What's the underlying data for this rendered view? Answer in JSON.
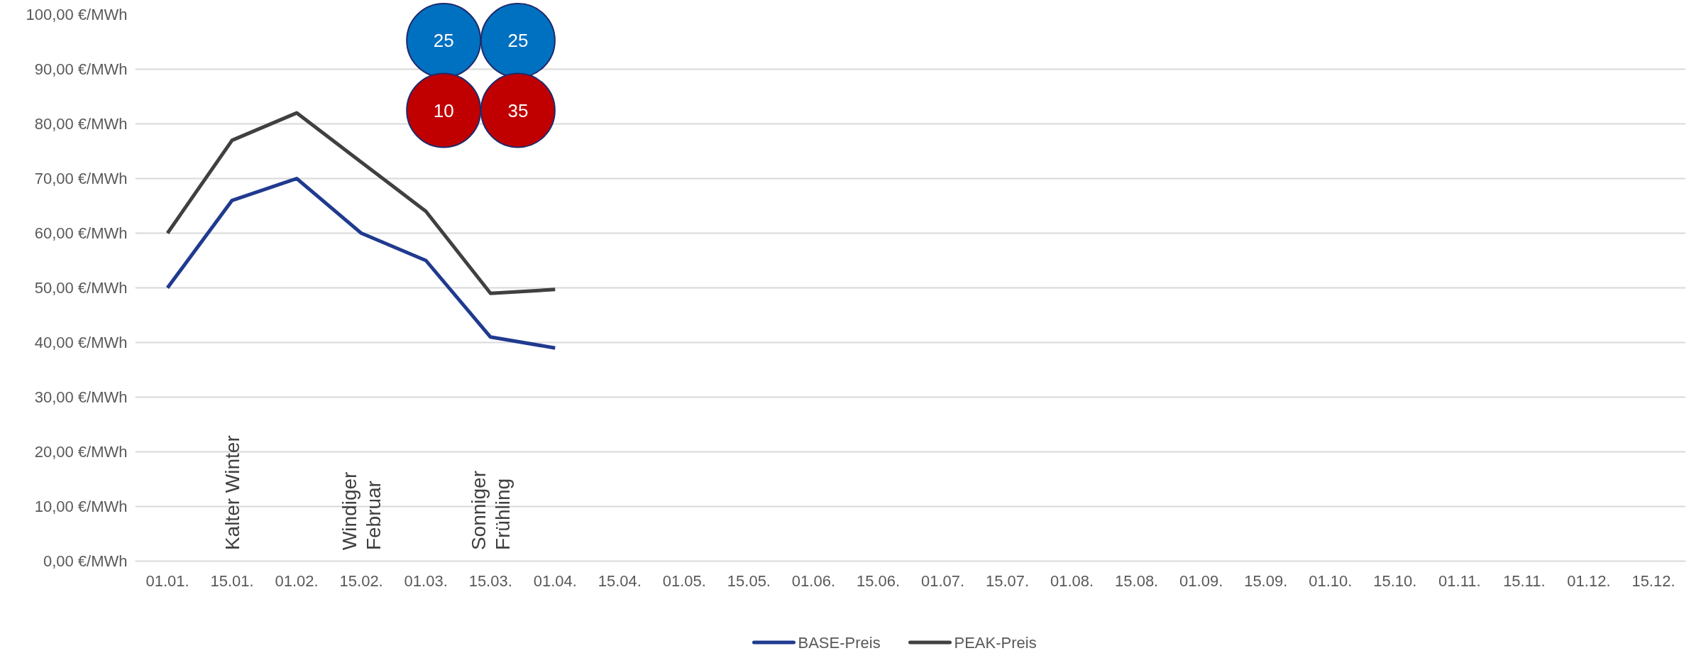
{
  "chart_data": {
    "type": "line",
    "categories": [
      "01.01.",
      "15.01.",
      "01.02.",
      "15.02.",
      "01.03.",
      "15.03.",
      "01.04.",
      "15.04.",
      "01.05.",
      "15.05.",
      "01.06.",
      "15.06.",
      "01.07.",
      "15.07.",
      "01.08.",
      "15.08.",
      "01.09.",
      "15.09.",
      "01.10.",
      "15.10.",
      "01.11.",
      "15.11.",
      "01.12.",
      "15.12."
    ],
    "series": [
      {
        "name": "BASE-Preis",
        "color": "#203a8f",
        "values": [
          50,
          66,
          70,
          60,
          55,
          41,
          39,
          null,
          null,
          null,
          null,
          null,
          null,
          null,
          null,
          null,
          null,
          null,
          null,
          null,
          null,
          null,
          null,
          null
        ]
      },
      {
        "name": "PEAK-Preis",
        "color": "#404040",
        "values": [
          60,
          77,
          82,
          73,
          64,
          49,
          49.7,
          null,
          null,
          null,
          null,
          null,
          null,
          null,
          null,
          null,
          null,
          null,
          null,
          null,
          null,
          null,
          null,
          null
        ]
      }
    ],
    "ylim": [
      0,
      100
    ],
    "yticks": [
      {
        "value": 0,
        "label": "0,00 €/MWh"
      },
      {
        "value": 10,
        "label": "10,00 €/MWh"
      },
      {
        "value": 20,
        "label": "20,00 €/MWh"
      },
      {
        "value": 30,
        "label": "30,00 €/MWh"
      },
      {
        "value": 40,
        "label": "40,00 €/MWh"
      },
      {
        "value": 50,
        "label": "50,00 €/MWh"
      },
      {
        "value": 60,
        "label": "60,00 €/MWh"
      },
      {
        "value": 70,
        "label": "70,00 €/MWh"
      },
      {
        "value": 80,
        "label": "80,00 €/MWh"
      },
      {
        "value": 90,
        "label": "90,00 €/MWh"
      },
      {
        "value": 100,
        "label": "100,00 €/MWh"
      }
    ],
    "grid": "y",
    "legend": "bottom",
    "annotations": [
      "Kalter Winter",
      "Windiger\nFebruar",
      "Sonniger\nFrühling",
      "25",
      "25",
      "10",
      "35"
    ]
  }
}
